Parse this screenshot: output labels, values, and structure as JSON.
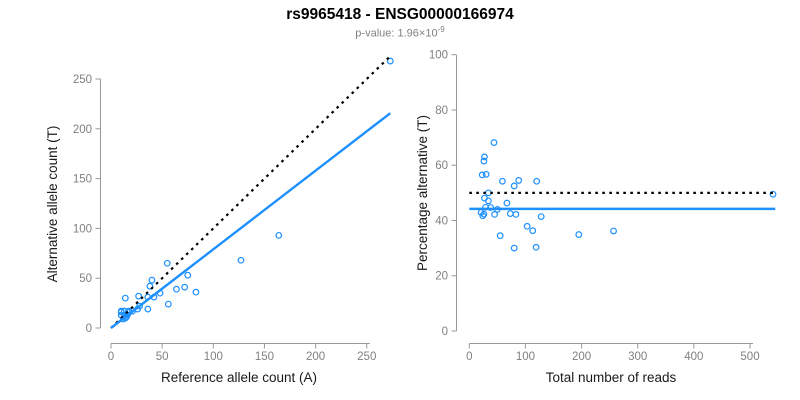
{
  "header": {
    "title": "rs9965418 - ENSG00000166974",
    "pvalue_base": "p-value: 1.96×10",
    "pvalue_exponent": "-9"
  },
  "colors": {
    "points": "#1E90FF",
    "fit_line": "#1E90FF",
    "expected_line": "#000000",
    "axis_line": "#999999",
    "tick_text": "#808080",
    "axis_title_text": "#1a1a1a"
  },
  "chart_data": [
    {
      "type": "scatter",
      "xlabel": "Reference allele count (A)",
      "ylabel": "Alternative allele count (T)",
      "xticks": [
        0,
        50,
        100,
        150,
        200,
        250
      ],
      "yticks": [
        0,
        50,
        100,
        150,
        200,
        250
      ],
      "xlim": [
        0,
        273
      ],
      "ylim": [
        0,
        273
      ],
      "grid": false,
      "points": [
        [
          273,
          268
        ],
        [
          164,
          93
        ],
        [
          127,
          68
        ],
        [
          75,
          53
        ],
        [
          83,
          36
        ],
        [
          72,
          41
        ],
        [
          64,
          39
        ],
        [
          55,
          65
        ],
        [
          56,
          24
        ],
        [
          48,
          35
        ],
        [
          42,
          31
        ],
        [
          36,
          31
        ],
        [
          36,
          19
        ],
        [
          40,
          48
        ],
        [
          38,
          42
        ],
        [
          28,
          22
        ],
        [
          27,
          32
        ],
        [
          26,
          19
        ],
        [
          21,
          17
        ],
        [
          18,
          16
        ],
        [
          17,
          17
        ],
        [
          16,
          13
        ],
        [
          15,
          11
        ],
        [
          14,
          13
        ],
        [
          14,
          30
        ],
        [
          14,
          10
        ],
        [
          13,
          17
        ],
        [
          12,
          9
        ],
        [
          10,
          16
        ],
        [
          10,
          17
        ],
        [
          10,
          13
        ]
      ],
      "lines": [
        {
          "name": "expected-50pct-line",
          "kind": "slope",
          "slope": 1,
          "intercept": 0,
          "style": "dotted",
          "color": "#000000"
        },
        {
          "name": "regression-fit-line",
          "kind": "slope",
          "slope": 0.79,
          "intercept": 0,
          "style": "solid",
          "color": "#1E90FF"
        }
      ]
    },
    {
      "type": "scatter",
      "xlabel": "Total number of reads",
      "ylabel": "Percentage alternative (T)",
      "xticks": [
        0,
        100,
        200,
        300,
        400,
        500
      ],
      "yticks": [
        0,
        20,
        40,
        60,
        80,
        100
      ],
      "xlim": [
        0,
        545
      ],
      "ylim": [
        0,
        100
      ],
      "grid": false,
      "points": [
        [
          541,
          49.5
        ],
        [
          257,
          36.2
        ],
        [
          195,
          34.9
        ],
        [
          128,
          41.4
        ],
        [
          119,
          30.3
        ],
        [
          113,
          36.3
        ],
        [
          103,
          37.9
        ],
        [
          120,
          54.2
        ],
        [
          80,
          30.0
        ],
        [
          83,
          42.2
        ],
        [
          73,
          42.5
        ],
        [
          67,
          46.3
        ],
        [
          55,
          34.5
        ],
        [
          88,
          54.5
        ],
        [
          80,
          52.5
        ],
        [
          50,
          44.0
        ],
        [
          59,
          54.2
        ],
        [
          45,
          42.2
        ],
        [
          38,
          44.7
        ],
        [
          34,
          47.1
        ],
        [
          34,
          50.0
        ],
        [
          29,
          44.8
        ],
        [
          26,
          42.3
        ],
        [
          27,
          48.1
        ],
        [
          44,
          68.2
        ],
        [
          24,
          41.7
        ],
        [
          30,
          56.7
        ],
        [
          21,
          42.9
        ],
        [
          26,
          61.5
        ],
        [
          27,
          63.0
        ],
        [
          23,
          56.5
        ]
      ],
      "lines": [
        {
          "name": "expected-50pct-line",
          "kind": "hline",
          "y": 50,
          "style": "dotted",
          "color": "#000000"
        },
        {
          "name": "mean-fit-line",
          "kind": "hline",
          "y": 44.2,
          "style": "solid",
          "color": "#1E90FF"
        }
      ]
    }
  ]
}
